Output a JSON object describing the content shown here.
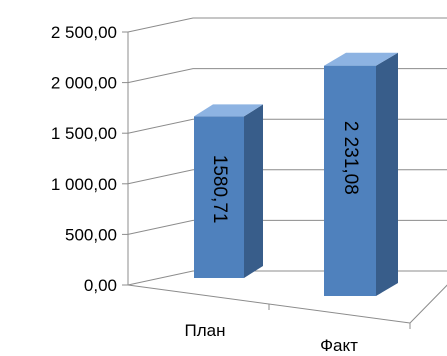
{
  "chart_data": {
    "type": "bar",
    "categories": [
      "План",
      "Факт"
    ],
    "values": [
      1580.71,
      2231.08
    ],
    "data_labels": [
      "1580,71",
      "2 231,08"
    ],
    "y_tick_labels": [
      "0,00",
      "500,00",
      "1 000,00",
      "1 500,00",
      "2 000,00",
      "2 500,00"
    ],
    "y_ticks": [
      0,
      500,
      1000,
      1500,
      2000,
      2500
    ],
    "ylim": [
      0,
      2500
    ],
    "title": "",
    "xlabel": "",
    "ylabel": "",
    "grid": true,
    "legend": "none",
    "three_d": true,
    "colors": {
      "bar_front": "#4f81bd",
      "bar_side": "#385d8a",
      "bar_top": "#8db3e2",
      "grid": "#8c8c8c"
    }
  }
}
